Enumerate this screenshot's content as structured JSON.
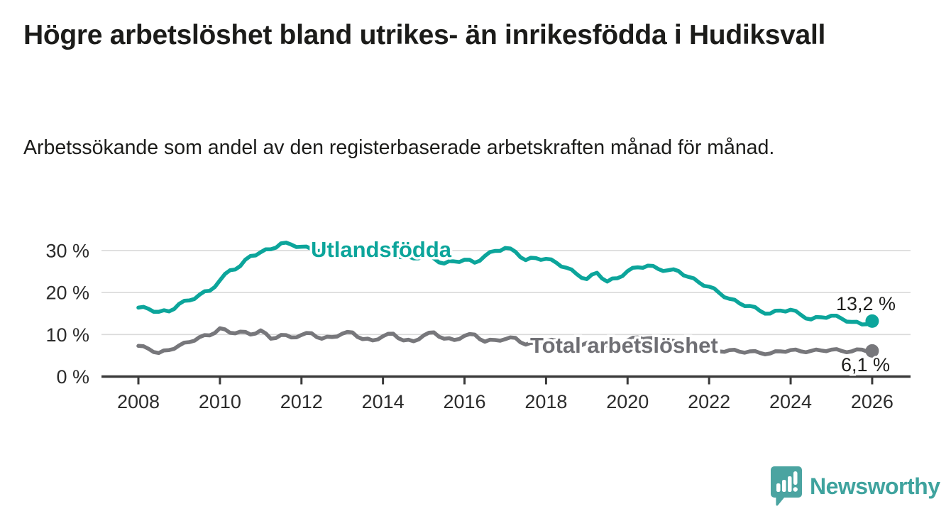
{
  "chart_data": {
    "type": "line",
    "title": "Högre arbetslöshet bland utrikes- än inrikesfödda i Hudiksvall",
    "subtitle": "Arbetssökande som andel av den registerbaserade arbetskraften månad för månad.",
    "unit": "%",
    "grid": "horizontal",
    "legend_position": "inline-labels",
    "xlim": [
      2007.1,
      2026.95
    ],
    "ylim": [
      0,
      33
    ],
    "y_ticks": [
      {
        "value": 0,
        "label": "0 %"
      },
      {
        "value": 10,
        "label": "10 %"
      },
      {
        "value": 20,
        "label": "20 %"
      },
      {
        "value": 30,
        "label": "30 %"
      }
    ],
    "x_ticks": [
      {
        "value": 2008,
        "label": "2008"
      },
      {
        "value": 2010,
        "label": "2010"
      },
      {
        "value": 2012,
        "label": "2012"
      },
      {
        "value": 2014,
        "label": "2014"
      },
      {
        "value": 2016,
        "label": "2016"
      },
      {
        "value": 2018,
        "label": "2018"
      },
      {
        "value": 2020,
        "label": "2020"
      },
      {
        "value": 2022,
        "label": "2022"
      },
      {
        "value": 2024,
        "label": "2024"
      },
      {
        "value": 2026,
        "label": "2026"
      }
    ],
    "series": [
      {
        "name": "Utlandsfödda",
        "color": "#0ca59b",
        "end_value": 13.2,
        "end_label": "13,2 %",
        "points": [
          [
            2008.0,
            16.4
          ],
          [
            2008.25,
            16.1
          ],
          [
            2008.5,
            15.4
          ],
          [
            2008.75,
            15.5
          ],
          [
            2009.0,
            17.3
          ],
          [
            2009.25,
            18.1
          ],
          [
            2009.5,
            19.5
          ],
          [
            2009.75,
            20.4
          ],
          [
            2010.0,
            22.9
          ],
          [
            2010.25,
            25.3
          ],
          [
            2010.5,
            26.3
          ],
          [
            2010.75,
            28.7
          ],
          [
            2011.0,
            29.6
          ],
          [
            2011.25,
            30.3
          ],
          [
            2011.5,
            31.7
          ],
          [
            2011.75,
            31.4
          ],
          [
            2012.0,
            30.9
          ],
          [
            2012.25,
            30.3
          ],
          [
            2012.5,
            30.0
          ],
          [
            2012.75,
            29.6
          ],
          [
            2013.0,
            29.4
          ],
          [
            2013.25,
            29.9
          ],
          [
            2013.5,
            29.2
          ],
          [
            2013.75,
            28.8
          ],
          [
            2014.0,
            28.6
          ],
          [
            2014.25,
            29.1
          ],
          [
            2014.5,
            28.4
          ],
          [
            2014.75,
            28.1
          ],
          [
            2015.0,
            28.8
          ],
          [
            2015.25,
            28.1
          ],
          [
            2015.5,
            26.9
          ],
          [
            2015.75,
            27.4
          ],
          [
            2016.0,
            27.8
          ],
          [
            2016.25,
            27.1
          ],
          [
            2016.5,
            28.7
          ],
          [
            2016.75,
            29.9
          ],
          [
            2017.0,
            30.6
          ],
          [
            2017.25,
            29.7
          ],
          [
            2017.5,
            27.7
          ],
          [
            2017.75,
            28.2
          ],
          [
            2018.0,
            28.0
          ],
          [
            2018.25,
            27.1
          ],
          [
            2018.5,
            25.9
          ],
          [
            2018.75,
            24.4
          ],
          [
            2019.0,
            23.2
          ],
          [
            2019.25,
            24.7
          ],
          [
            2019.5,
            22.6
          ],
          [
            2019.75,
            23.4
          ],
          [
            2020.0,
            25.1
          ],
          [
            2020.25,
            26.0
          ],
          [
            2020.5,
            26.4
          ],
          [
            2020.75,
            25.6
          ],
          [
            2021.0,
            25.3
          ],
          [
            2021.25,
            25.1
          ],
          [
            2021.5,
            23.7
          ],
          [
            2021.75,
            22.4
          ],
          [
            2022.0,
            21.4
          ],
          [
            2022.25,
            19.9
          ],
          [
            2022.5,
            18.5
          ],
          [
            2022.75,
            17.4
          ],
          [
            2023.0,
            16.8
          ],
          [
            2023.25,
            15.6
          ],
          [
            2023.5,
            15.0
          ],
          [
            2023.75,
            15.7
          ],
          [
            2024.0,
            15.9
          ],
          [
            2024.25,
            14.7
          ],
          [
            2024.5,
            13.6
          ],
          [
            2024.75,
            14.1
          ],
          [
            2025.0,
            14.5
          ],
          [
            2025.25,
            13.8
          ],
          [
            2025.5,
            13.0
          ],
          [
            2025.75,
            12.4
          ],
          [
            2026.0,
            13.2
          ]
        ]
      },
      {
        "name": "Total arbetslöshet",
        "color": "#77777b",
        "end_value": 6.1,
        "end_label": "6,1 %",
        "points": [
          [
            2008.0,
            7.3
          ],
          [
            2008.25,
            6.6
          ],
          [
            2008.5,
            5.6
          ],
          [
            2008.75,
            6.3
          ],
          [
            2009.0,
            7.4
          ],
          [
            2009.25,
            8.2
          ],
          [
            2009.5,
            9.4
          ],
          [
            2009.75,
            9.8
          ],
          [
            2010.0,
            11.5
          ],
          [
            2010.25,
            10.4
          ],
          [
            2010.5,
            10.7
          ],
          [
            2010.75,
            10.0
          ],
          [
            2011.0,
            11.0
          ],
          [
            2011.25,
            9.0
          ],
          [
            2011.5,
            9.9
          ],
          [
            2011.75,
            9.3
          ],
          [
            2012.0,
            9.9
          ],
          [
            2012.25,
            10.3
          ],
          [
            2012.5,
            9.0
          ],
          [
            2012.75,
            9.4
          ],
          [
            2013.0,
            10.2
          ],
          [
            2013.25,
            10.5
          ],
          [
            2013.5,
            8.9
          ],
          [
            2013.75,
            8.6
          ],
          [
            2014.0,
            9.6
          ],
          [
            2014.25,
            10.2
          ],
          [
            2014.5,
            8.6
          ],
          [
            2014.75,
            8.4
          ],
          [
            2015.0,
            9.8
          ],
          [
            2015.25,
            10.5
          ],
          [
            2015.5,
            9.0
          ],
          [
            2015.75,
            8.7
          ],
          [
            2016.0,
            9.7
          ],
          [
            2016.25,
            10.0
          ],
          [
            2016.5,
            8.3
          ],
          [
            2016.75,
            8.7
          ],
          [
            2017.0,
            8.9
          ],
          [
            2017.25,
            9.2
          ],
          [
            2017.5,
            7.6
          ],
          [
            2017.75,
            7.9
          ],
          [
            2018.0,
            8.4
          ],
          [
            2018.25,
            8.6
          ],
          [
            2018.5,
            7.8
          ],
          [
            2018.75,
            7.5
          ],
          [
            2019.0,
            8.0
          ],
          [
            2019.25,
            8.2
          ],
          [
            2019.5,
            7.4
          ],
          [
            2019.75,
            7.7
          ],
          [
            2020.0,
            8.6
          ],
          [
            2020.25,
            9.3
          ],
          [
            2020.5,
            9.1
          ],
          [
            2020.75,
            8.7
          ],
          [
            2021.0,
            8.5
          ],
          [
            2021.25,
            8.0
          ],
          [
            2021.5,
            7.3
          ],
          [
            2021.75,
            6.9
          ],
          [
            2022.0,
            6.6
          ],
          [
            2022.25,
            6.0
          ],
          [
            2022.5,
            6.3
          ],
          [
            2022.75,
            5.9
          ],
          [
            2023.0,
            6.0
          ],
          [
            2023.25,
            5.6
          ],
          [
            2023.5,
            5.5
          ],
          [
            2023.75,
            6.0
          ],
          [
            2024.0,
            6.3
          ],
          [
            2024.25,
            6.0
          ],
          [
            2024.5,
            6.1
          ],
          [
            2024.75,
            6.2
          ],
          [
            2025.0,
            6.4
          ],
          [
            2025.25,
            6.1
          ],
          [
            2025.5,
            6.0
          ],
          [
            2025.75,
            6.4
          ],
          [
            2026.0,
            6.1
          ]
        ]
      }
    ]
  },
  "footer": {
    "brand": "Newsworthy",
    "logo_icon": "bar-chart-speech-bubble-icon"
  }
}
